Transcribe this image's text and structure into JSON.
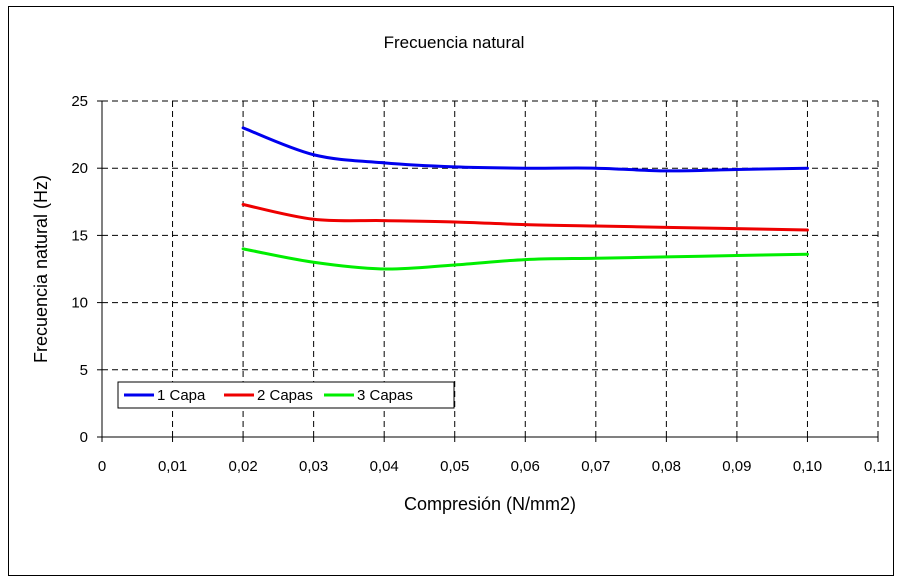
{
  "chart_data": {
    "type": "line",
    "title": "Frecuencia natural",
    "xlabel": "Compresión (N/mm2)",
    "ylabel": "Frecuencia natural (Hz)",
    "xlim": [
      0,
      0.11
    ],
    "ylim": [
      0,
      25
    ],
    "x_ticks": [
      0,
      0.01,
      0.02,
      0.03,
      0.04,
      0.05,
      0.06,
      0.07,
      0.08,
      0.09,
      0.1,
      0.11
    ],
    "x_tick_labels": [
      "0",
      "0,01",
      "0,02",
      "0,03",
      "0,04",
      "0,05",
      "0,06",
      "0,07",
      "0,08",
      "0,09",
      "0,10",
      "0,11"
    ],
    "y_ticks": [
      0,
      5,
      10,
      15,
      20,
      25
    ],
    "y_tick_labels": [
      "0",
      "5",
      "10",
      "15",
      "20",
      "25"
    ],
    "grid": true,
    "legend_position": "bottom-left",
    "x": [
      0.02,
      0.03,
      0.04,
      0.05,
      0.06,
      0.07,
      0.08,
      0.09,
      0.1
    ],
    "series": [
      {
        "name": "1 Capa",
        "color": "#0000ee",
        "values": [
          23.0,
          21.0,
          20.4,
          20.1,
          20.0,
          20.0,
          19.8,
          19.9,
          20.0
        ]
      },
      {
        "name": "2 Capas",
        "color": "#ee0000",
        "values": [
          17.3,
          16.2,
          16.1,
          16.0,
          15.8,
          15.7,
          15.6,
          15.5,
          15.4
        ]
      },
      {
        "name": "3 Capas",
        "color": "#00ee00",
        "values": [
          14.0,
          13.0,
          12.5,
          12.8,
          13.2,
          13.3,
          13.4,
          13.5,
          13.6
        ]
      }
    ]
  }
}
